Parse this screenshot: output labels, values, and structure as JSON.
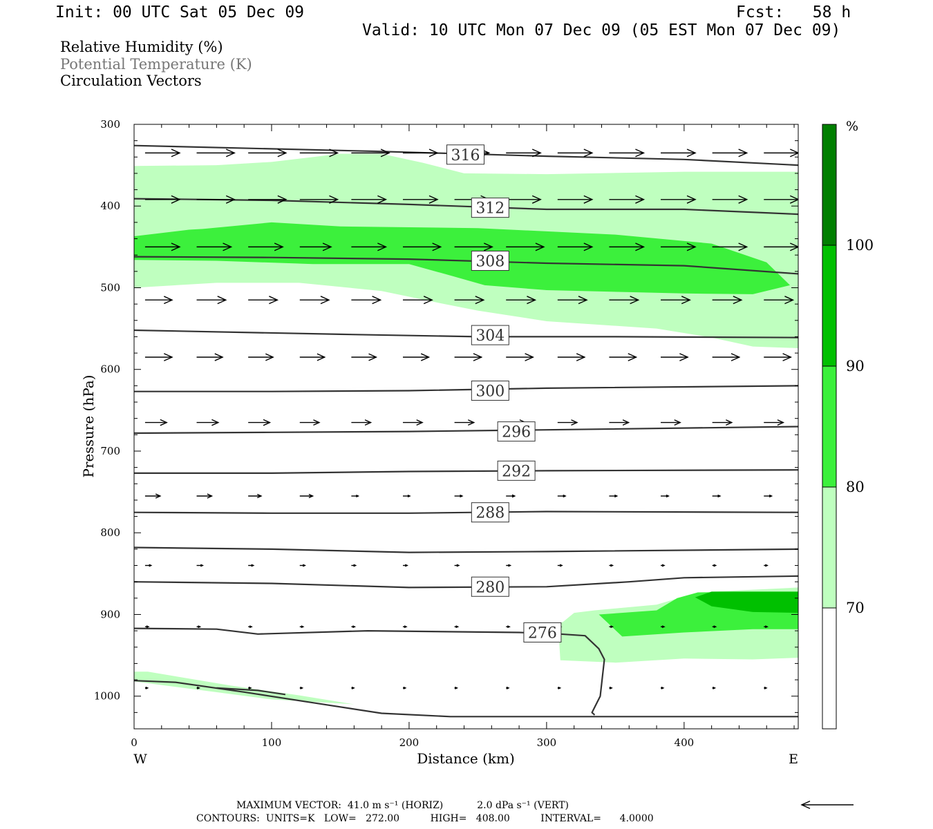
{
  "header": {
    "init": "Init: 00 UTC Sat 05 Dec 09",
    "fcst": "Fcst:   58 h",
    "valid": "Valid: 10 UTC Mon 07 Dec 09 (05 EST Mon 07 Dec 09)"
  },
  "legend_items": [
    "Relative Humidity (%)",
    "Potential Temperature (K)",
    "Circulation Vectors"
  ],
  "footer": {
    "line1": "MAXIMUM VECTOR:  41.0 m s⁻¹ (HORIZ)           2.0 dPa s⁻¹ (VERT)",
    "line2": "CONTOURS:  UNITS=K   LOW=   272.00          HIGH=   408.00          INTERVAL=      4.0000"
  },
  "colors": {
    "rh70": "#bfffbf",
    "rh80": "#3cf03c",
    "rh90": "#00c000",
    "rh100": "#007f00",
    "contour": "#333333"
  },
  "chart_data": {
    "type": "cross-section",
    "xlabel": "Distance (km)",
    "ylabel": "Pressure (hPa)",
    "xlim": [
      0,
      483
    ],
    "ylim": [
      300,
      1040
    ],
    "y_scale": "linear-pressure",
    "x_ticks": [
      0,
      100,
      200,
      300,
      400
    ],
    "y_ticks": [
      300,
      400,
      500,
      600,
      700,
      800,
      900,
      1000
    ],
    "x_end_labels": {
      "left": "W",
      "right": "E"
    },
    "colorbar": {
      "unit": "%",
      "levels": [
        70,
        80,
        90,
        100
      ],
      "colors": [
        "#ffffff",
        "#bfffbf",
        "#3cf03c",
        "#00c000",
        "#007f00"
      ]
    },
    "rh_regions": [
      {
        "level": 70,
        "polygon": [
          [
            0,
            351
          ],
          [
            60,
            350
          ],
          [
            100,
            346
          ],
          [
            150,
            336
          ],
          [
            180,
            336
          ],
          [
            210,
            347
          ],
          [
            240,
            360
          ],
          [
            300,
            361
          ],
          [
            400,
            358
          ],
          [
            483,
            358
          ],
          [
            483,
            574
          ],
          [
            450,
            572
          ],
          [
            420,
            561
          ],
          [
            380,
            550
          ],
          [
            300,
            541
          ],
          [
            250,
            528
          ],
          [
            220,
            518
          ],
          [
            180,
            504
          ],
          [
            120,
            494
          ],
          [
            60,
            494
          ],
          [
            0,
            500
          ]
        ]
      },
      {
        "level": 80,
        "polygon": [
          [
            0,
            437
          ],
          [
            40,
            429
          ],
          [
            50,
            428
          ],
          [
            100,
            420
          ],
          [
            150,
            425
          ],
          [
            250,
            427
          ],
          [
            350,
            435
          ],
          [
            420,
            446
          ],
          [
            460,
            469
          ],
          [
            477,
            497
          ],
          [
            450,
            508
          ],
          [
            400,
            507
          ],
          [
            300,
            503
          ],
          [
            255,
            497
          ],
          [
            230,
            485
          ],
          [
            200,
            471
          ],
          [
            130,
            471
          ],
          [
            60,
            467
          ],
          [
            0,
            466
          ]
        ]
      },
      {
        "level": 70,
        "polygon": [
          [
            305,
            913
          ],
          [
            312,
            909
          ],
          [
            320,
            898
          ],
          [
            335,
            895
          ],
          [
            380,
            888
          ],
          [
            410,
            873
          ],
          [
            483,
            867
          ],
          [
            483,
            953
          ],
          [
            450,
            955
          ],
          [
            400,
            954
          ],
          [
            350,
            959
          ],
          [
            310,
            956
          ],
          [
            309,
            930
          ]
        ]
      },
      {
        "level": 80,
        "polygon": [
          [
            338,
            900
          ],
          [
            380,
            895
          ],
          [
            395,
            880
          ],
          [
            410,
            873
          ],
          [
            483,
            873
          ],
          [
            483,
            918
          ],
          [
            450,
            918
          ],
          [
            400,
            922
          ],
          [
            355,
            927
          ]
        ]
      },
      {
        "level": 90,
        "polygon": [
          [
            408,
            879
          ],
          [
            420,
            872
          ],
          [
            483,
            872
          ],
          [
            483,
            898
          ],
          [
            450,
            897
          ],
          [
            420,
            890
          ]
        ]
      },
      {
        "level": 70,
        "polygon": [
          [
            0,
            970
          ],
          [
            10,
            970
          ],
          [
            70,
            987
          ],
          [
            120,
            999
          ],
          [
            160,
            1010
          ],
          [
            150,
            1009
          ],
          [
            100,
            1004
          ],
          [
            50,
            993
          ],
          [
            0,
            982
          ]
        ]
      }
    ],
    "theta_contours": [
      {
        "value": 316,
        "points": [
          [
            0,
            326
          ],
          [
            175,
            333
          ],
          [
            300,
            339
          ],
          [
            400,
            343
          ],
          [
            483,
            350
          ]
        ]
      },
      {
        "value": 312,
        "points": [
          [
            0,
            391
          ],
          [
            100,
            393
          ],
          [
            200,
            398
          ],
          [
            300,
            404
          ],
          [
            400,
            404
          ],
          [
            483,
            410
          ]
        ]
      },
      {
        "value": 308,
        "points": [
          [
            0,
            462
          ],
          [
            100,
            463
          ],
          [
            200,
            465
          ],
          [
            300,
            470
          ],
          [
            400,
            473
          ],
          [
            483,
            483
          ]
        ]
      },
      {
        "value": 304,
        "points": [
          [
            0,
            552
          ],
          [
            150,
            557
          ],
          [
            250,
            560
          ],
          [
            350,
            560
          ],
          [
            483,
            561
          ]
        ]
      },
      {
        "value": 300,
        "points": [
          [
            0,
            627
          ],
          [
            100,
            627
          ],
          [
            200,
            626
          ],
          [
            300,
            623
          ],
          [
            483,
            620
          ]
        ]
      },
      {
        "value": 296,
        "points": [
          [
            0,
            678
          ],
          [
            100,
            677
          ],
          [
            200,
            676
          ],
          [
            300,
            674
          ],
          [
            483,
            670
          ]
        ]
      },
      {
        "value": 292,
        "points": [
          [
            0,
            727
          ],
          [
            100,
            727
          ],
          [
            200,
            725
          ],
          [
            300,
            724
          ],
          [
            483,
            723
          ]
        ]
      },
      {
        "value": 288,
        "points": [
          [
            0,
            775
          ],
          [
            100,
            776
          ],
          [
            200,
            776
          ],
          [
            300,
            774
          ],
          [
            483,
            775
          ]
        ]
      },
      {
        "value": "",
        "points": [
          [
            0,
            818
          ],
          [
            100,
            820
          ],
          [
            200,
            824
          ],
          [
            300,
            823
          ],
          [
            483,
            820
          ]
        ]
      },
      {
        "value": 280,
        "points": [
          [
            0,
            860
          ],
          [
            100,
            862
          ],
          [
            200,
            867
          ],
          [
            300,
            866
          ],
          [
            360,
            860
          ],
          [
            400,
            855
          ],
          [
            483,
            853
          ]
        ]
      },
      {
        "value": 276,
        "points": [
          [
            0,
            917
          ],
          [
            60,
            918
          ],
          [
            90,
            924
          ],
          [
            170,
            920
          ],
          [
            280,
            922
          ],
          [
            310,
            924
          ],
          [
            328,
            926
          ],
          [
            338,
            942
          ],
          [
            342,
            955
          ],
          [
            339,
            1000
          ],
          [
            333,
            1020
          ],
          [
            335,
            1023
          ]
        ]
      },
      {
        "value": "",
        "points": [
          [
            0,
            981
          ],
          [
            30,
            983
          ],
          [
            80,
            995
          ],
          [
            130,
            1008
          ],
          [
            180,
            1021
          ],
          [
            230,
            1025
          ],
          [
            300,
            1025
          ],
          [
            400,
            1025
          ],
          [
            483,
            1025
          ]
        ]
      },
      {
        "value": "",
        "points": [
          [
            60,
            990
          ],
          [
            90,
            993
          ],
          [
            110,
            998
          ]
        ]
      }
    ],
    "theta_labels": [
      {
        "value": "316",
        "x": 241,
        "p": 337
      },
      {
        "value": "312",
        "x": 259,
        "p": 402
      },
      {
        "value": "308",
        "x": 259,
        "p": 467
      },
      {
        "value": "304",
        "x": 259,
        "p": 558
      },
      {
        "value": "300",
        "x": 259,
        "p": 626
      },
      {
        "value": "296",
        "x": 278,
        "p": 676
      },
      {
        "value": "292",
        "x": 278,
        "p": 724
      },
      {
        "value": "288",
        "x": 259,
        "p": 775
      },
      {
        "value": "280",
        "x": 259,
        "p": 866
      },
      {
        "value": "276",
        "x": 297,
        "p": 922
      }
    ],
    "vector_rows": [
      {
        "p": 335,
        "u": [
          32,
          35,
          35,
          35,
          35,
          32,
          32,
          32,
          32,
          32,
          32,
          32,
          32
        ],
        "w": [
          0,
          0,
          0,
          0,
          0,
          0,
          0,
          0,
          0,
          0,
          0,
          0,
          0
        ]
      },
      {
        "p": 392,
        "u": [
          32,
          35,
          35,
          35,
          32,
          32,
          32,
          32,
          32,
          32,
          32,
          32,
          32
        ],
        "w": [
          0,
          0,
          0,
          0,
          0,
          0,
          0,
          0,
          0,
          0,
          0,
          0,
          0
        ]
      },
      {
        "p": 450,
        "u": [
          32,
          32,
          32,
          29,
          32,
          35,
          35,
          35,
          32,
          32,
          32,
          32,
          32
        ],
        "w": [
          0,
          0,
          0,
          0,
          0,
          0,
          0,
          0,
          0,
          0,
          0,
          0,
          0
        ]
      },
      {
        "p": 515,
        "u": [
          25,
          27,
          27,
          27,
          27,
          27,
          27,
          27,
          27,
          27,
          27,
          27,
          27
        ],
        "w": [
          0,
          0,
          0,
          0,
          0,
          0,
          0,
          0,
          0,
          0,
          0,
          0,
          0
        ]
      },
      {
        "p": 585,
        "u": [
          25,
          24,
          23,
          23,
          23,
          24,
          25,
          25,
          25,
          25,
          25,
          25,
          25
        ],
        "w": [
          0,
          0,
          0,
          0,
          0,
          0,
          0,
          0,
          0,
          0,
          0,
          0,
          0
        ]
      },
      {
        "p": 665,
        "u": [
          20,
          20,
          20,
          18,
          18,
          18,
          18,
          18,
          18,
          18,
          18,
          18,
          18
        ],
        "w": [
          0,
          0,
          0,
          0,
          0,
          0,
          0,
          0,
          0,
          0,
          0,
          0,
          0
        ]
      },
      {
        "p": 755,
        "u": [
          14,
          14,
          12,
          12,
          8,
          8,
          9,
          10,
          9,
          9,
          9,
          9,
          9
        ],
        "w": [
          0,
          0,
          0,
          0,
          0,
          0,
          0,
          0,
          0,
          0,
          0,
          0,
          0
        ]
      },
      {
        "p": 840,
        "u": [
          7,
          7,
          6,
          6,
          5,
          5,
          5,
          5,
          5,
          4,
          4,
          4,
          4
        ],
        "w": [
          0,
          0,
          0,
          0,
          0,
          0,
          0,
          0,
          0,
          0,
          0,
          0,
          0
        ]
      },
      {
        "p": 915,
        "u": [
          4,
          4,
          4,
          4,
          4,
          4,
          4,
          4,
          4,
          4,
          4,
          4,
          4
        ],
        "w": [
          0,
          0,
          0,
          0,
          0,
          0,
          0,
          0,
          0,
          0,
          0,
          0,
          0
        ]
      },
      {
        "p": 990,
        "u": [
          3,
          3,
          3,
          3,
          3,
          3,
          3,
          3,
          3,
          3,
          3,
          3,
          3
        ],
        "w": [
          0,
          0,
          0,
          0,
          0,
          0,
          0,
          0,
          0,
          0,
          0,
          0,
          0
        ]
      }
    ],
    "reference_vector": {
      "u": -41.0,
      "w": 0.0
    }
  }
}
